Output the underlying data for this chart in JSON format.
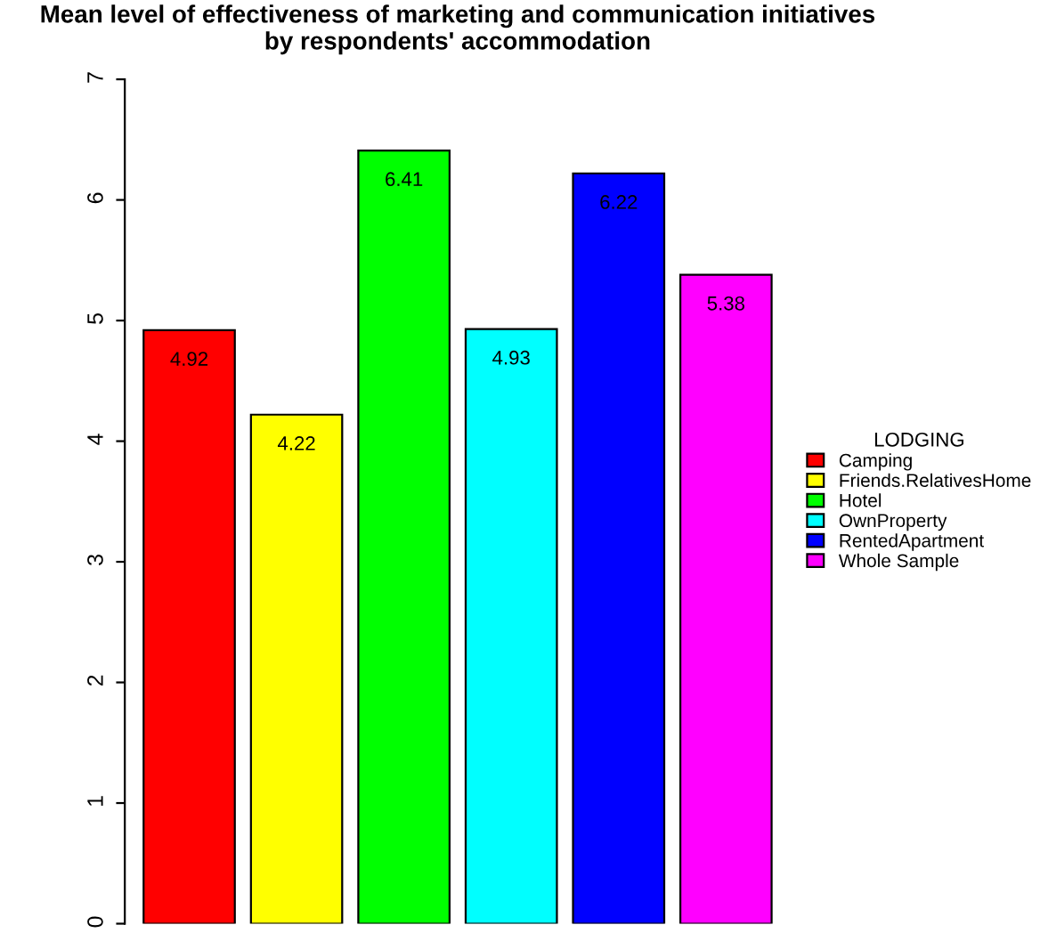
{
  "chart_data": {
    "type": "bar",
    "title": "Mean level of effectiveness of marketing and communication initiatives\nby respondents' accommodation",
    "categories": [
      null
    ],
    "series": [
      {
        "name": "Camping",
        "color": "#ff0000",
        "values": [
          4.92
        ]
      },
      {
        "name": "Friends.RelativesHome",
        "color": "#ffff00",
        "values": [
          4.22
        ]
      },
      {
        "name": "Hotel",
        "color": "#00ff00",
        "values": [
          6.41
        ]
      },
      {
        "name": "OwnProperty",
        "color": "#00ffff",
        "values": [
          4.93
        ]
      },
      {
        "name": "RentedApartment",
        "color": "#0000ff",
        "values": [
          6.22
        ]
      },
      {
        "name": "Whole Sample",
        "color": "#ff00ff",
        "values": [
          5.38
        ]
      }
    ],
    "ylim": [
      0,
      7
    ],
    "yticks": [
      0,
      1,
      2,
      3,
      4,
      5,
      6,
      7
    ],
    "legend_title": "LODGING",
    "legend": "right",
    "data_labels": true,
    "tick_labels": "y",
    "grid": false
  }
}
